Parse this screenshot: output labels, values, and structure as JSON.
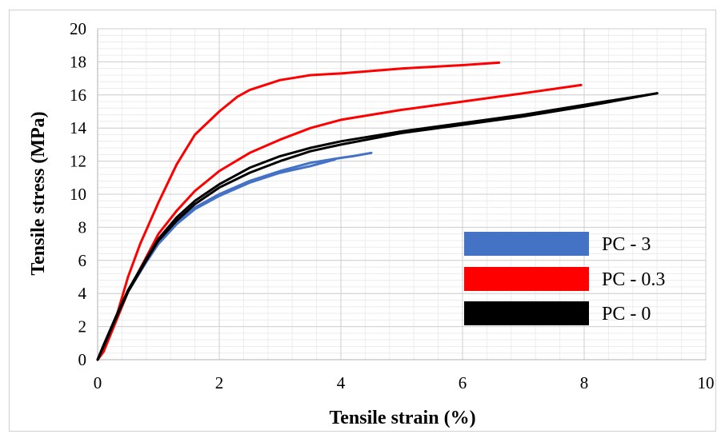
{
  "chart_data": {
    "type": "line",
    "xlabel": "Tensile strain (%)",
    "ylabel": "Tensile stress (MPa)",
    "xlim": [
      0,
      10
    ],
    "ylim": [
      0,
      20
    ],
    "x_ticks": [
      "0",
      "2",
      "4",
      "6",
      "8",
      "10"
    ],
    "y_ticks": [
      "0",
      "2",
      "4",
      "6",
      "8",
      "10",
      "12",
      "14",
      "16",
      "18",
      "20"
    ],
    "grid": "major and minor",
    "legend_placement": "bottom-right",
    "series": [
      {
        "name": "PC - 3",
        "color": "#4472c4",
        "curves": [
          [
            [
              0,
              0
            ],
            [
              0.1,
              0.9
            ],
            [
              0.3,
              2.5
            ],
            [
              0.5,
              4.2
            ],
            [
              0.8,
              6
            ],
            [
              1,
              7.1
            ],
            [
              1.3,
              8.3
            ],
            [
              1.6,
              9.2
            ],
            [
              2,
              10
            ],
            [
              2.5,
              10.8
            ],
            [
              3,
              11.4
            ],
            [
              3.5,
              11.9
            ],
            [
              4,
              12.2
            ],
            [
              4.2,
              12.3
            ],
            [
              4.5,
              12.5
            ]
          ],
          [
            [
              0,
              0
            ],
            [
              0.1,
              0.8
            ],
            [
              0.3,
              2.4
            ],
            [
              0.5,
              4.1
            ],
            [
              0.8,
              5.9
            ],
            [
              1,
              7.0
            ],
            [
              1.3,
              8.2
            ],
            [
              1.6,
              9.1
            ],
            [
              2,
              9.9
            ],
            [
              2.5,
              10.7
            ],
            [
              3,
              11.3
            ],
            [
              3.5,
              11.7
            ],
            [
              3.9,
              12.1
            ]
          ]
        ]
      },
      {
        "name": "PC - 0.3",
        "color": "#ff0000",
        "curves": [
          [
            [
              0,
              0
            ],
            [
              0.1,
              0.5
            ],
            [
              0.3,
              2.5
            ],
            [
              0.5,
              5
            ],
            [
              0.7,
              7
            ],
            [
              1,
              9.5
            ],
            [
              1.3,
              11.8
            ],
            [
              1.6,
              13.6
            ],
            [
              2,
              15
            ],
            [
              2.3,
              15.9
            ],
            [
              2.5,
              16.3
            ],
            [
              3,
              16.9
            ],
            [
              3.5,
              17.2
            ],
            [
              4,
              17.3
            ],
            [
              5,
              17.6
            ],
            [
              6,
              17.8
            ],
            [
              6.6,
              17.95
            ]
          ],
          [
            [
              0,
              0
            ],
            [
              0.1,
              0.5
            ],
            [
              0.3,
              2.3
            ],
            [
              0.5,
              4.1
            ],
            [
              0.8,
              6.2
            ],
            [
              1,
              7.6
            ],
            [
              1.3,
              9
            ],
            [
              1.6,
              10.2
            ],
            [
              2,
              11.4
            ],
            [
              2.5,
              12.5
            ],
            [
              3,
              13.3
            ],
            [
              3.5,
              14
            ],
            [
              4,
              14.5
            ],
            [
              5,
              15.1
            ],
            [
              6,
              15.6
            ],
            [
              7,
              16.1
            ],
            [
              7.95,
              16.6
            ]
          ]
        ]
      },
      {
        "name": "PC - 0",
        "color": "#000000",
        "curves": [
          [
            [
              0,
              0
            ],
            [
              0.1,
              0.9
            ],
            [
              0.3,
              2.6
            ],
            [
              0.5,
              4.2
            ],
            [
              0.8,
              6.1
            ],
            [
              1,
              7.3
            ],
            [
              1.3,
              8.6
            ],
            [
              1.6,
              9.6
            ],
            [
              2,
              10.6
            ],
            [
              2.5,
              11.6
            ],
            [
              3,
              12.3
            ],
            [
              3.5,
              12.8
            ],
            [
              4,
              13.2
            ],
            [
              5,
              13.8
            ],
            [
              6,
              14.3
            ],
            [
              7,
              14.8
            ],
            [
              8,
              15.4
            ],
            [
              9.2,
              16.1
            ]
          ],
          [
            [
              0,
              0
            ],
            [
              0.1,
              0.8
            ],
            [
              0.3,
              2.5
            ],
            [
              0.5,
              4.1
            ],
            [
              0.8,
              6.0
            ],
            [
              1,
              7.2
            ],
            [
              1.3,
              8.4
            ],
            [
              1.6,
              9.4
            ],
            [
              2,
              10.4
            ],
            [
              2.5,
              11.3
            ],
            [
              3,
              12.0
            ],
            [
              3.5,
              12.6
            ],
            [
              4,
              13.0
            ],
            [
              5,
              13.7
            ],
            [
              6,
              14.2
            ],
            [
              7,
              14.7
            ],
            [
              8,
              15.3
            ],
            [
              9.2,
              16.1
            ]
          ]
        ]
      }
    ]
  }
}
